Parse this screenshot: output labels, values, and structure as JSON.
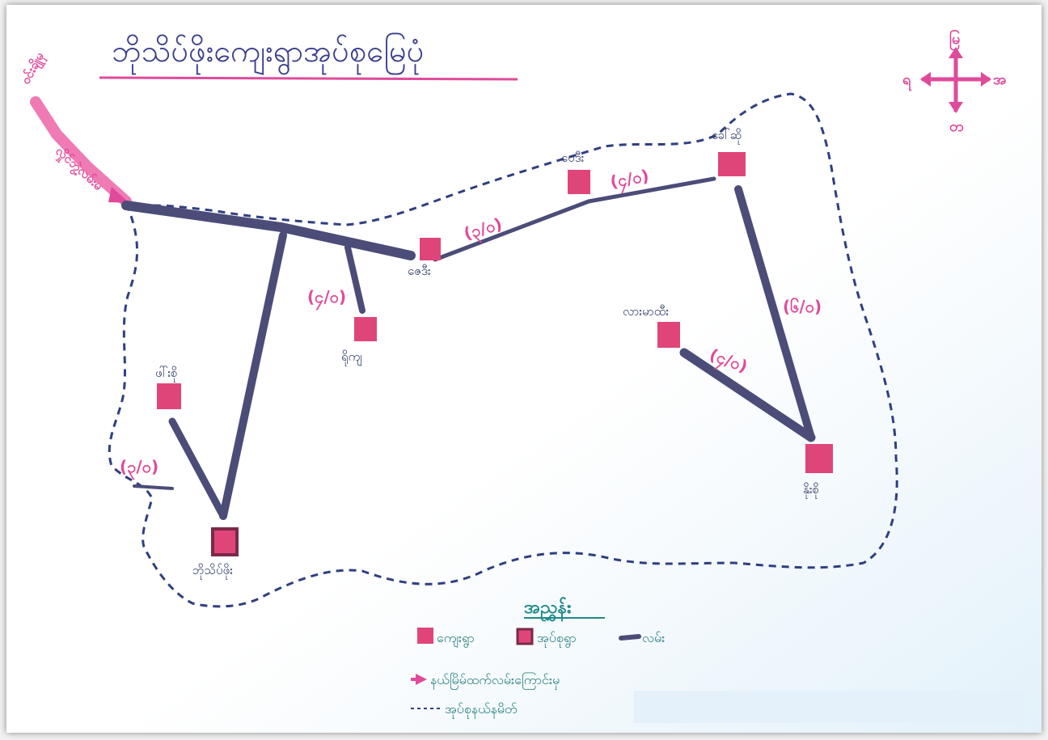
{
  "map": {
    "title": "ဘိုသိပ်ဖိုးကျေးရွာအုပ်စုမြေပုံ",
    "compass": {
      "north": "မြ",
      "south": "တ",
      "east": "အ",
      "west": "ရ"
    },
    "entry_road": {
      "from_label": "ဝင်းချိုမှ",
      "road_label": "လှိုင်ဘွဲ့လမ်းမ"
    },
    "villages": [
      {
        "id": "paydi",
        "label": "ပေဒီး"
      },
      {
        "id": "khaw-sone",
        "label": "ခေါ်ဆို"
      },
      {
        "id": "zaydi",
        "label": "ဇေဒီး"
      },
      {
        "id": "yo-kya",
        "label": "ရိုကျ"
      },
      {
        "id": "lar-ma-di",
        "label": "လားမာထီး"
      },
      {
        "id": "phaw-si",
        "label": "ဖါ်းစို"
      },
      {
        "id": "baw-sit-phyo",
        "label": "ဘိုသိပ်ဖိုး"
      },
      {
        "id": "noe-si",
        "label": "နိုးစို"
      }
    ],
    "distances": [
      {
        "id": "zaydi-paydi",
        "label": "(၃/၀)"
      },
      {
        "id": "paydi-khawsone",
        "label": "(၄/၀)"
      },
      {
        "id": "main-yokya",
        "label": "(၄/၀)"
      },
      {
        "id": "khawsone-noesi",
        "label": "(၆/၀)"
      },
      {
        "id": "larmadi-noesi",
        "label": "(၄/၀)"
      },
      {
        "id": "phawsi-west",
        "label": "(၃/၀)"
      }
    ],
    "legend": {
      "title": "အညွှန်း",
      "village": "ကျေးရွာ",
      "tract_village": "အုပ်စုရွာ",
      "road": "လမ်း",
      "entry": "နယ်မြိမ်ထက်လမ်းကြောင်းမှ",
      "boundary": "အုပ်စုနယ်နမိတ်"
    },
    "colors": {
      "road": "#4b4c78",
      "village": "#e0457a",
      "pink": "#e04a9a",
      "boundary": "#2f3f82",
      "legend_text": "#1d8a8a",
      "tract_village_border": "#7a2a48"
    }
  }
}
